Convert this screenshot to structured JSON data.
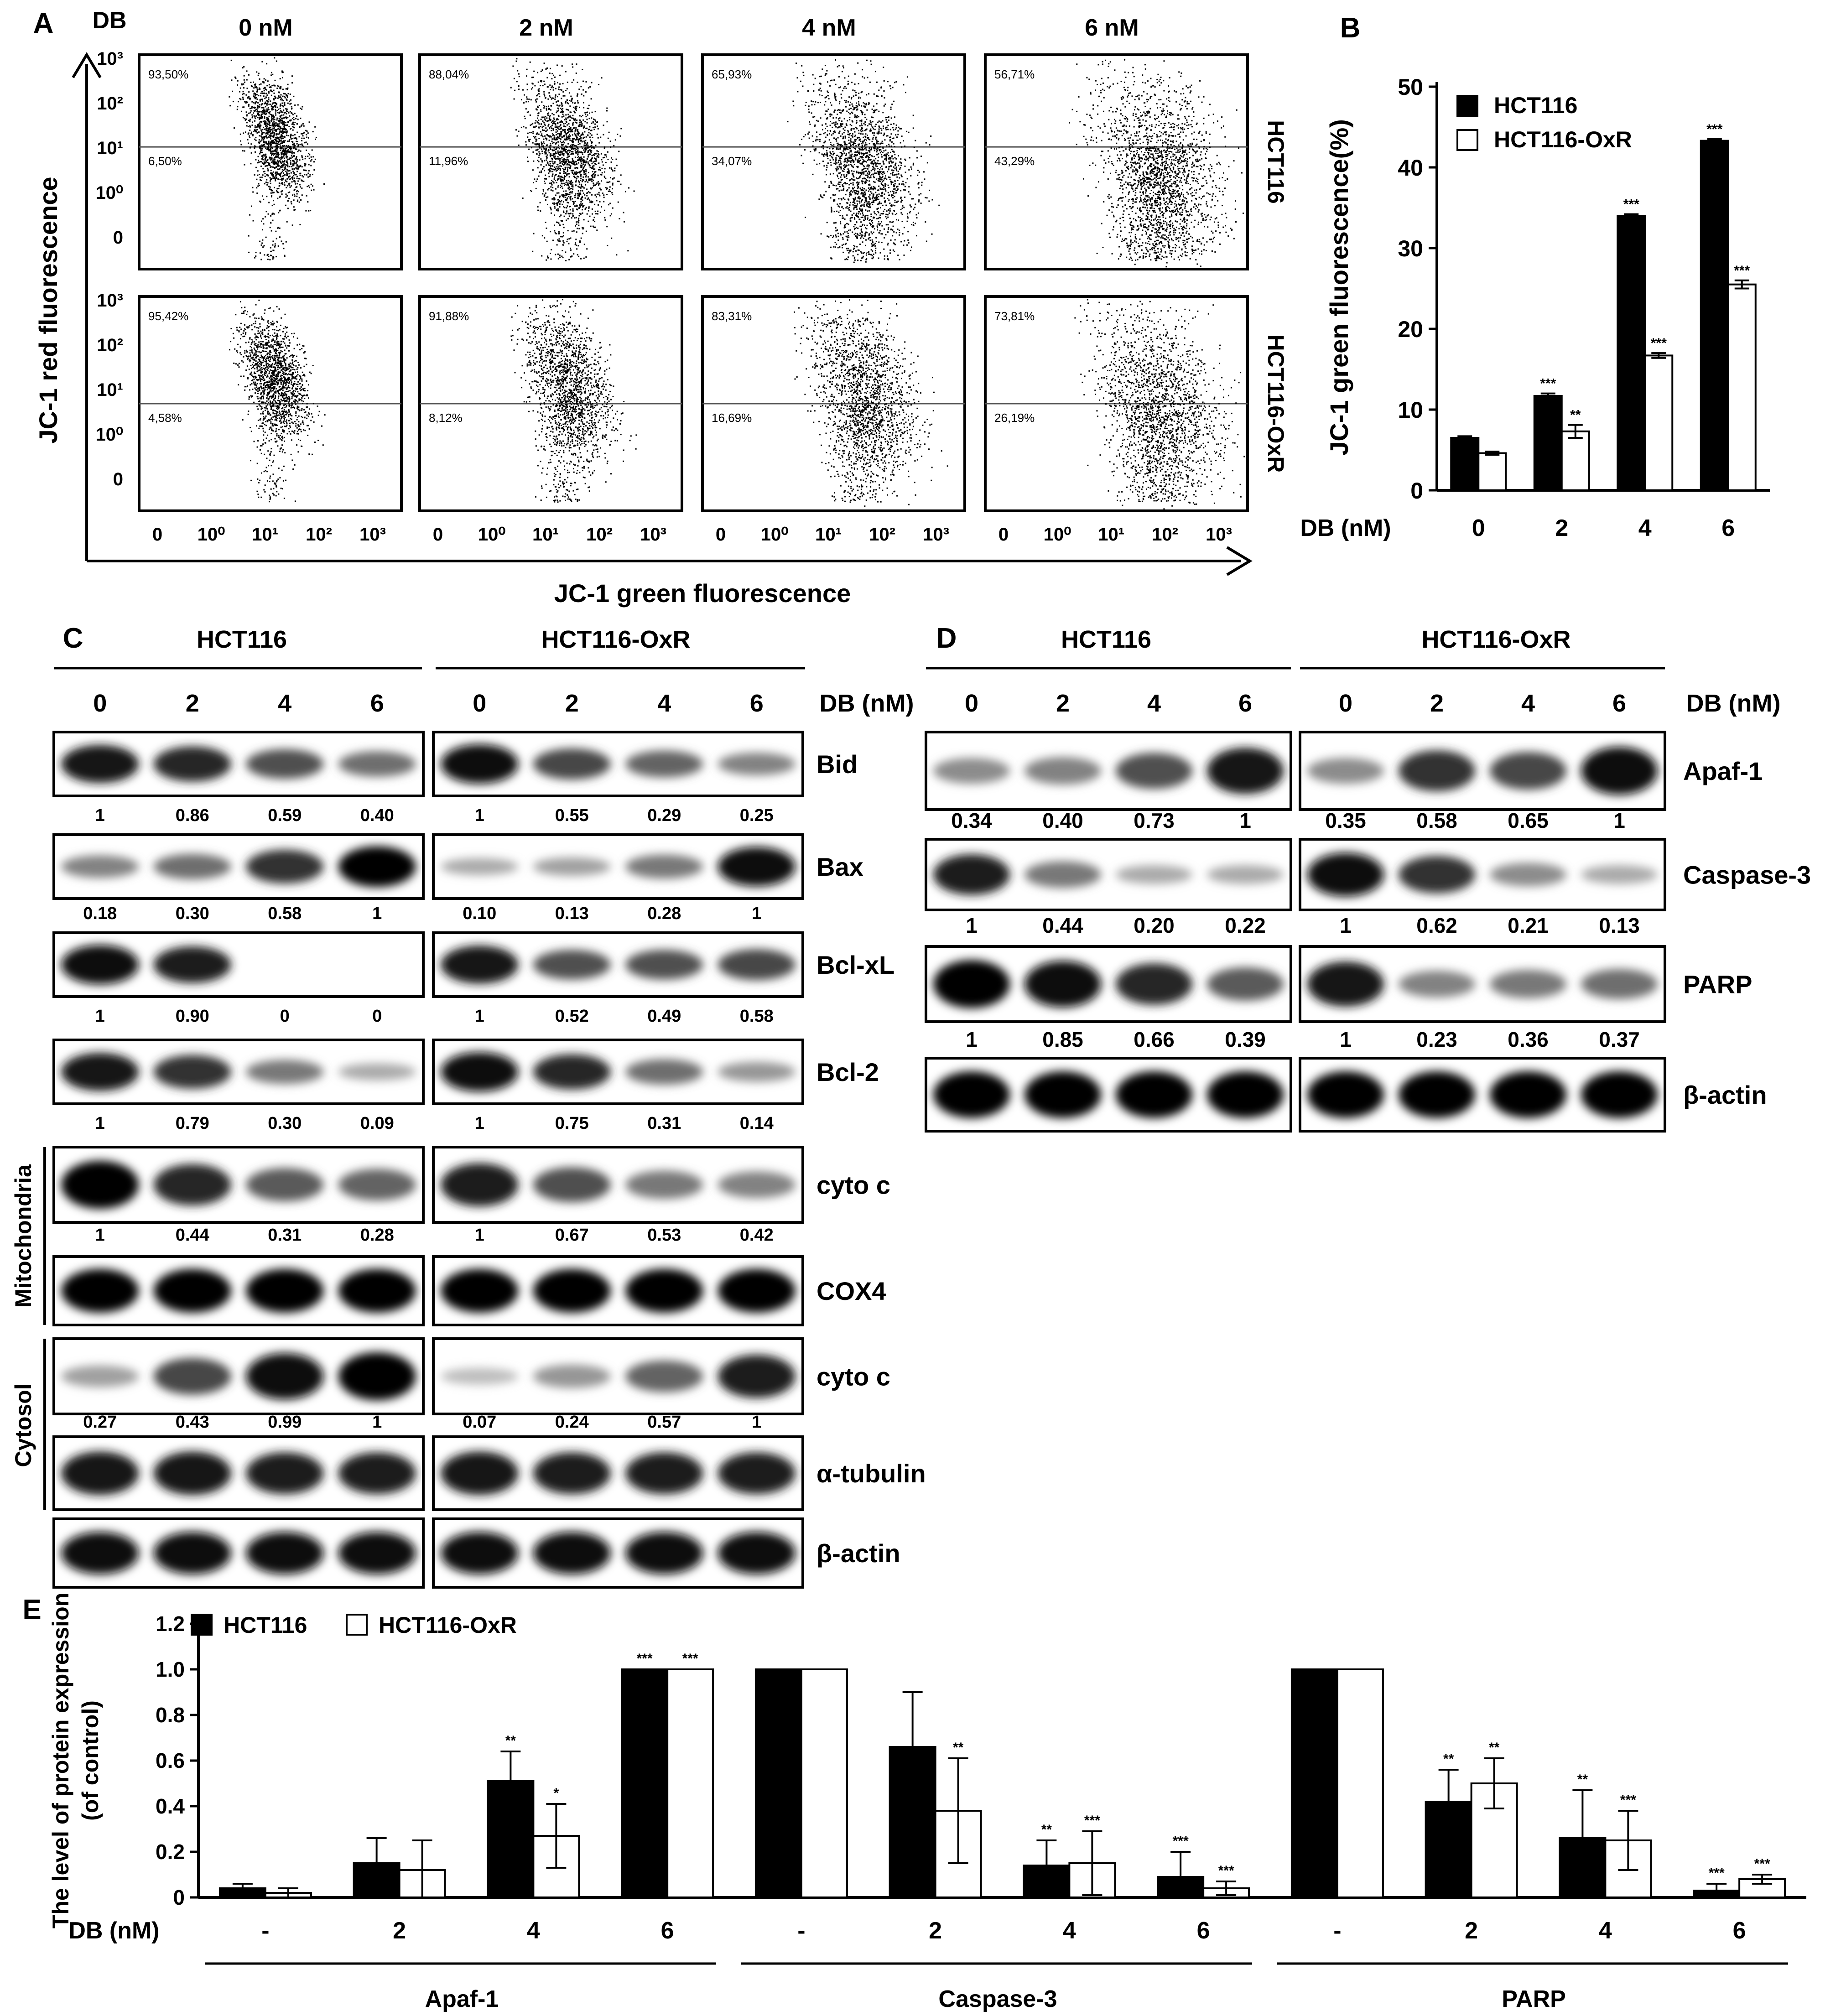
{
  "panel_letters": [
    "A",
    "B",
    "C",
    "D",
    "E"
  ],
  "flow": {
    "db_label": "DB",
    "conc_labels": [
      "0 nM",
      "2 nM",
      "4 nM",
      "6 nM"
    ],
    "row_labels": [
      "HCT116",
      "HCT116-OxR"
    ],
    "ylabel": "JC-1 red fluorescence",
    "xlabel": "JC-1 green fluorescence",
    "axis_ticks": [
      "0",
      "10⁰",
      "10¹",
      "10²",
      "10³"
    ],
    "upper_pct": [
      [
        "93,50%",
        "88,04%",
        "65,93%",
        "56,71%"
      ],
      [
        "95,42%",
        "91,88%",
        "83,31%",
        "73,81%"
      ]
    ],
    "lower_pct": [
      [
        "6,50%",
        "11,96%",
        "34,07%",
        "43,29%"
      ],
      [
        "4,58%",
        "8,12%",
        "16,69%",
        "26,19%"
      ]
    ]
  },
  "chart_data": [
    {
      "panel": "B",
      "type": "bar",
      "ylabel": "JC-1 green fluorescence(%)",
      "xlabel": "DB (nM)",
      "categories": [
        "0",
        "2",
        "4",
        "6"
      ],
      "ylim": [
        0,
        50
      ],
      "yticks": [
        "0",
        "10",
        "20",
        "30",
        "40",
        "50"
      ],
      "series": [
        {
          "name": "HCT116",
          "fill": "#000000",
          "values": [
            6.5,
            11.7,
            34.0,
            43.3
          ],
          "err": [
            0.2,
            0.3,
            0.2,
            0.2
          ],
          "sig": [
            "",
            "***",
            "***",
            "***"
          ]
        },
        {
          "name": "HCT116-OxR",
          "fill": "#ffffff",
          "values": [
            4.6,
            7.3,
            16.7,
            25.5
          ],
          "err": [
            0.2,
            0.8,
            0.3,
            0.5
          ],
          "sig": [
            "",
            "**",
            "***",
            "***"
          ]
        }
      ]
    },
    {
      "panel": "E",
      "type": "bar",
      "ylabel": "The level of protein expression (of control)",
      "xlabel": "DB (nM)",
      "groups": [
        "Apaf-1",
        "Caspase-3",
        "PARP"
      ],
      "categories": [
        "-",
        "2",
        "4",
        "6"
      ],
      "ylim": [
        0,
        1.2
      ],
      "yticks": [
        "0",
        "0.2",
        "0.4",
        "0.6",
        "0.8",
        "1.0",
        "1.2"
      ],
      "series": [
        {
          "name": "HCT116",
          "fill": "#000000",
          "values": [
            [
              0.04,
              0.15,
              0.51,
              1.0
            ],
            [
              1.0,
              0.66,
              0.14,
              0.09
            ],
            [
              1.0,
              0.42,
              0.26,
              0.03
            ]
          ],
          "err": [
            [
              0.02,
              0.11,
              0.13,
              0.0
            ],
            [
              0.0,
              0.24,
              0.11,
              0.11
            ],
            [
              0.0,
              0.14,
              0.21,
              0.03
            ]
          ],
          "sig": [
            [
              "",
              "",
              "**",
              "***"
            ],
            [
              "",
              "",
              "**",
              "***"
            ],
            [
              "",
              "**",
              "**",
              "***"
            ]
          ]
        },
        {
          "name": "HCT116-OxR",
          "fill": "#ffffff",
          "values": [
            [
              0.02,
              0.12,
              0.27,
              1.0
            ],
            [
              1.0,
              0.38,
              0.15,
              0.04
            ],
            [
              1.0,
              0.5,
              0.25,
              0.08
            ]
          ],
          "err": [
            [
              0.02,
              0.13,
              0.14,
              0.0
            ],
            [
              0.0,
              0.23,
              0.14,
              0.03
            ],
            [
              0.0,
              0.11,
              0.13,
              0.02
            ]
          ],
          "sig": [
            [
              "",
              "",
              "*",
              "***"
            ],
            [
              "",
              "**",
              "***",
              "***"
            ],
            [
              "",
              "**",
              "***",
              "***"
            ]
          ]
        }
      ]
    }
  ],
  "blotC": {
    "groups": [
      "HCT116",
      "HCT116-OxR"
    ],
    "lanes": [
      "0",
      "2",
      "4",
      "6"
    ],
    "db_label": "DB (nM)",
    "side_labels": [
      "Mitochondria",
      "Cytosol"
    ],
    "rows": [
      {
        "label": "Bid",
        "values": [
          [
            "1",
            "0.86",
            "0.59",
            "0.40"
          ],
          [
            "1",
            "0.55",
            "0.29",
            "0.25"
          ]
        ],
        "bands": [
          [
            0.9,
            0.8,
            0.6,
            0.45
          ],
          [
            0.95,
            0.65,
            0.5,
            0.35
          ]
        ]
      },
      {
        "label": "Bax",
        "values": [
          [
            "0.18",
            "0.30",
            "0.58",
            "1"
          ],
          [
            "0.10",
            "0.13",
            "0.28",
            "1"
          ]
        ],
        "bands": [
          [
            0.35,
            0.45,
            0.75,
            1.0
          ],
          [
            0.15,
            0.2,
            0.4,
            0.95
          ]
        ]
      },
      {
        "label": "Bcl-xL",
        "values": [
          [
            "1",
            "0.90",
            "0",
            "0"
          ],
          [
            "1",
            "0.52",
            "0.49",
            "0.58"
          ]
        ],
        "bands": [
          [
            0.95,
            0.85,
            0,
            0
          ],
          [
            0.9,
            0.6,
            0.6,
            0.65
          ]
        ]
      },
      {
        "label": "Bcl-2",
        "values": [
          [
            "1",
            "0.79",
            "0.30",
            "0.09"
          ],
          [
            "1",
            "0.75",
            "0.31",
            "0.14"
          ]
        ],
        "bands": [
          [
            0.9,
            0.75,
            0.4,
            0.15
          ],
          [
            0.95,
            0.8,
            0.45,
            0.25
          ]
        ]
      },
      {
        "label": "cyto c",
        "values": [
          [
            "1",
            "0.44",
            "0.31",
            "0.28"
          ],
          [
            "1",
            "0.67",
            "0.53",
            "0.42"
          ]
        ],
        "bands": [
          [
            1.0,
            0.8,
            0.55,
            0.5
          ],
          [
            0.85,
            0.6,
            0.4,
            0.35
          ]
        ]
      },
      {
        "label": "COX4",
        "values": [],
        "bands": [
          [
            1.0,
            1.0,
            1.0,
            1.0
          ],
          [
            1.0,
            1.0,
            1.0,
            1.0
          ]
        ]
      },
      {
        "label": "cyto c",
        "values": [
          [
            "0.27",
            "0.43",
            "0.99",
            "1"
          ],
          [
            "0.07",
            "0.24",
            "0.57",
            "1"
          ]
        ],
        "bands": [
          [
            0.2,
            0.65,
            0.95,
            1.0
          ],
          [
            0.05,
            0.25,
            0.5,
            0.85
          ]
        ]
      },
      {
        "label": "α-tubulin",
        "values": [],
        "bands": [
          [
            0.9,
            0.9,
            0.85,
            0.85
          ],
          [
            0.9,
            0.85,
            0.85,
            0.85
          ]
        ]
      },
      {
        "label": "β-actin",
        "values": [],
        "bands": [
          [
            0.95,
            0.95,
            0.95,
            0.95
          ],
          [
            0.95,
            0.95,
            0.95,
            0.95
          ]
        ]
      }
    ]
  },
  "blotD": {
    "groups": [
      "HCT116",
      "HCT116-OxR"
    ],
    "lanes": [
      "0",
      "2",
      "4",
      "6"
    ],
    "db_label": "DB (nM)",
    "rows": [
      {
        "label": "Apaf-1",
        "values": [
          [
            "0.34",
            "0.40",
            "0.73",
            "1"
          ],
          [
            "0.35",
            "0.58",
            "0.65",
            "1"
          ]
        ],
        "bands": [
          [
            0.3,
            0.35,
            0.6,
            0.9
          ],
          [
            0.3,
            0.75,
            0.65,
            0.95
          ]
        ]
      },
      {
        "label": "Caspase-3",
        "values": [
          [
            "1",
            "0.44",
            "0.20",
            "0.22"
          ],
          [
            "1",
            "0.62",
            "0.21",
            "0.13"
          ]
        ],
        "bands": [
          [
            0.85,
            0.4,
            0.15,
            0.15
          ],
          [
            0.95,
            0.75,
            0.3,
            0.15
          ]
        ]
      },
      {
        "label": "PARP",
        "values": [
          [
            "1",
            "0.85",
            "0.66",
            "0.39"
          ],
          [
            "1",
            "0.23",
            "0.36",
            "0.37"
          ]
        ],
        "bands": [
          [
            1.0,
            0.95,
            0.8,
            0.55
          ],
          [
            0.9,
            0.35,
            0.4,
            0.45
          ]
        ]
      },
      {
        "label": "β-actin",
        "values": [],
        "bands": [
          [
            1.0,
            1.0,
            1.0,
            1.0
          ],
          [
            1.0,
            1.0,
            1.0,
            1.0
          ]
        ]
      }
    ]
  }
}
